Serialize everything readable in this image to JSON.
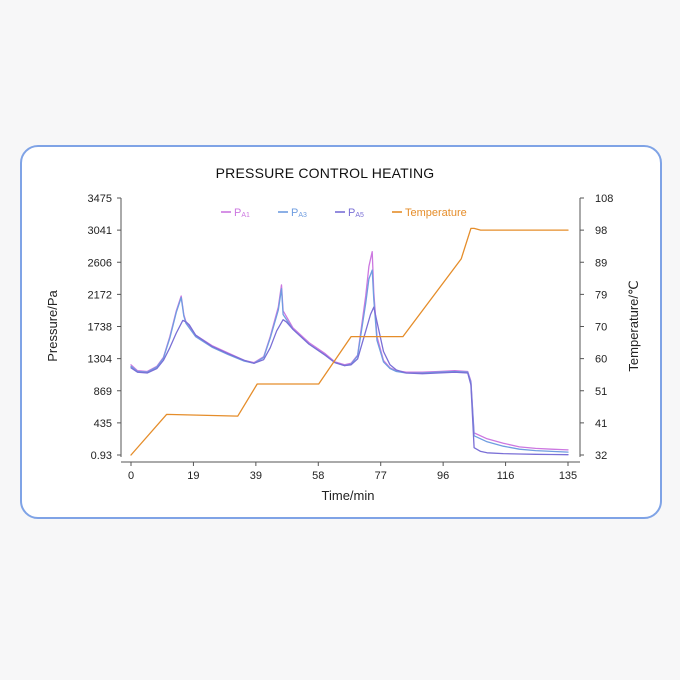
{
  "chart_data": {
    "type": "line",
    "title": "PRESSURE CONTROL HEATING",
    "xlabel": "Time/min",
    "ylabel": "Pressure/Pa",
    "y2label": "Temperature/℃",
    "xlim": [
      0,
      135
    ],
    "ylim": [
      0.93,
      3475
    ],
    "y2lim": [
      32,
      108
    ],
    "x_ticks": [
      "0",
      "19",
      "39",
      "58",
      "77",
      "96",
      "116",
      "135"
    ],
    "y_ticks": [
      "0.93",
      "435",
      "869",
      "1304",
      "1738",
      "2172",
      "2606",
      "3041",
      "3475"
    ],
    "y2_ticks": [
      "32",
      "41",
      "51",
      "60",
      "70",
      "79",
      "89",
      "98",
      "108"
    ],
    "legend_position": "top",
    "series": [
      {
        "name": "PA1",
        "name_main": "P",
        "name_sub": "A1",
        "axis": "left",
        "color": "#cc77e0",
        "x": [
          0,
          2,
          5,
          8,
          10,
          12,
          14,
          15.5,
          16.3,
          17,
          20,
          25,
          30,
          35,
          38,
          41,
          43,
          45.5,
          46.5,
          47,
          50,
          55,
          60,
          63,
          66,
          68,
          70,
          72.5,
          73.5,
          74.5,
          75,
          76,
          78,
          80,
          82,
          85,
          90,
          95,
          100,
          104,
          105,
          106,
          110,
          115,
          120,
          125,
          130,
          135
        ],
        "y": [
          1220,
          1140,
          1130,
          1200,
          1320,
          1600,
          1950,
          2150,
          1900,
          1800,
          1620,
          1480,
          1380,
          1280,
          1250,
          1330,
          1600,
          2000,
          2300,
          1950,
          1720,
          1520,
          1370,
          1260,
          1220,
          1240,
          1350,
          2150,
          2550,
          2750,
          2200,
          1600,
          1280,
          1180,
          1140,
          1120,
          1120,
          1130,
          1140,
          1130,
          1000,
          300,
          220,
          160,
          110,
          90,
          80,
          70
        ]
      },
      {
        "name": "PA3",
        "name_main": "P",
        "name_sub": "A3",
        "axis": "left",
        "color": "#6f9de0",
        "x": [
          0,
          2,
          5,
          8,
          10,
          12,
          14,
          15.5,
          16.3,
          17,
          20,
          25,
          30,
          35,
          38,
          41,
          43,
          45.5,
          46.5,
          47,
          50,
          55,
          60,
          63,
          66,
          68,
          70,
          72.5,
          73.5,
          74.5,
          75,
          76,
          78,
          80,
          82,
          85,
          90,
          95,
          100,
          104,
          105,
          106,
          110,
          115,
          120,
          125,
          130,
          135
        ],
        "y": [
          1200,
          1130,
          1120,
          1190,
          1310,
          1580,
          1930,
          2130,
          1880,
          1780,
          1600,
          1460,
          1360,
          1270,
          1240,
          1320,
          1580,
          1960,
          2250,
          1900,
          1700,
          1500,
          1350,
          1250,
          1210,
          1230,
          1340,
          2050,
          2380,
          2500,
          2100,
          1550,
          1260,
          1170,
          1130,
          1110,
          1110,
          1120,
          1130,
          1120,
          980,
          260,
          180,
          120,
          80,
          60,
          50,
          40
        ]
      },
      {
        "name": "PA5",
        "name_main": "P",
        "name_sub": "A5",
        "axis": "left",
        "color": "#7a6fd6",
        "x": [
          0,
          2,
          5,
          8,
          10,
          12,
          14,
          16,
          17,
          18,
          20,
          25,
          30,
          35,
          38,
          41,
          43,
          45,
          47,
          48,
          50,
          55,
          60,
          63,
          66,
          68,
          70,
          72,
          74,
          75,
          76,
          78,
          80,
          82,
          85,
          90,
          95,
          100,
          104,
          105,
          106,
          108,
          110,
          115,
          120,
          125,
          130,
          135
        ],
        "y": [
          1180,
          1120,
          1110,
          1170,
          1280,
          1450,
          1650,
          1820,
          1800,
          1760,
          1620,
          1470,
          1370,
          1280,
          1240,
          1290,
          1450,
          1680,
          1830,
          1800,
          1700,
          1500,
          1350,
          1250,
          1210,
          1220,
          1300,
          1600,
          1900,
          2000,
          1800,
          1400,
          1220,
          1150,
          1110,
          1100,
          1110,
          1120,
          1110,
          950,
          100,
          50,
          30,
          20,
          15,
          10,
          8,
          5
        ]
      },
      {
        "name": "Temperature",
        "axis": "right",
        "color": "#e58d2a",
        "x": [
          0,
          11,
          33,
          39,
          58,
          68,
          84,
          102,
          105,
          106,
          108,
          135
        ],
        "y": [
          32,
          44,
          43.5,
          53,
          53,
          67,
          67,
          90,
          99,
          99,
          98.5,
          98.5
        ]
      }
    ]
  }
}
